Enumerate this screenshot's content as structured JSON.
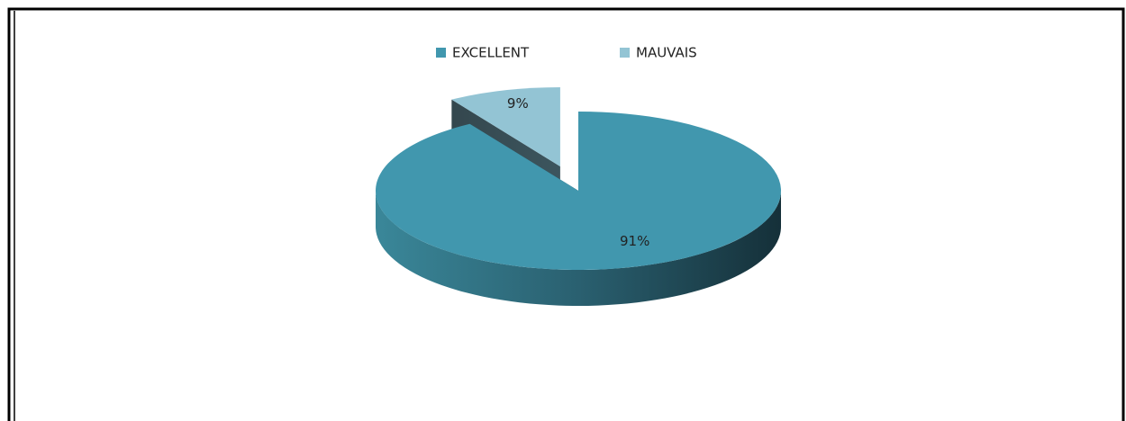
{
  "chart_data": {
    "type": "pie",
    "categories": [
      "EXCELLENT",
      "MAUVAIS"
    ],
    "values": [
      91,
      9
    ],
    "value_labels": [
      "91%",
      "9%"
    ],
    "colors": [
      "#4197ae",
      "#93c4d4"
    ],
    "legend": "top"
  }
}
